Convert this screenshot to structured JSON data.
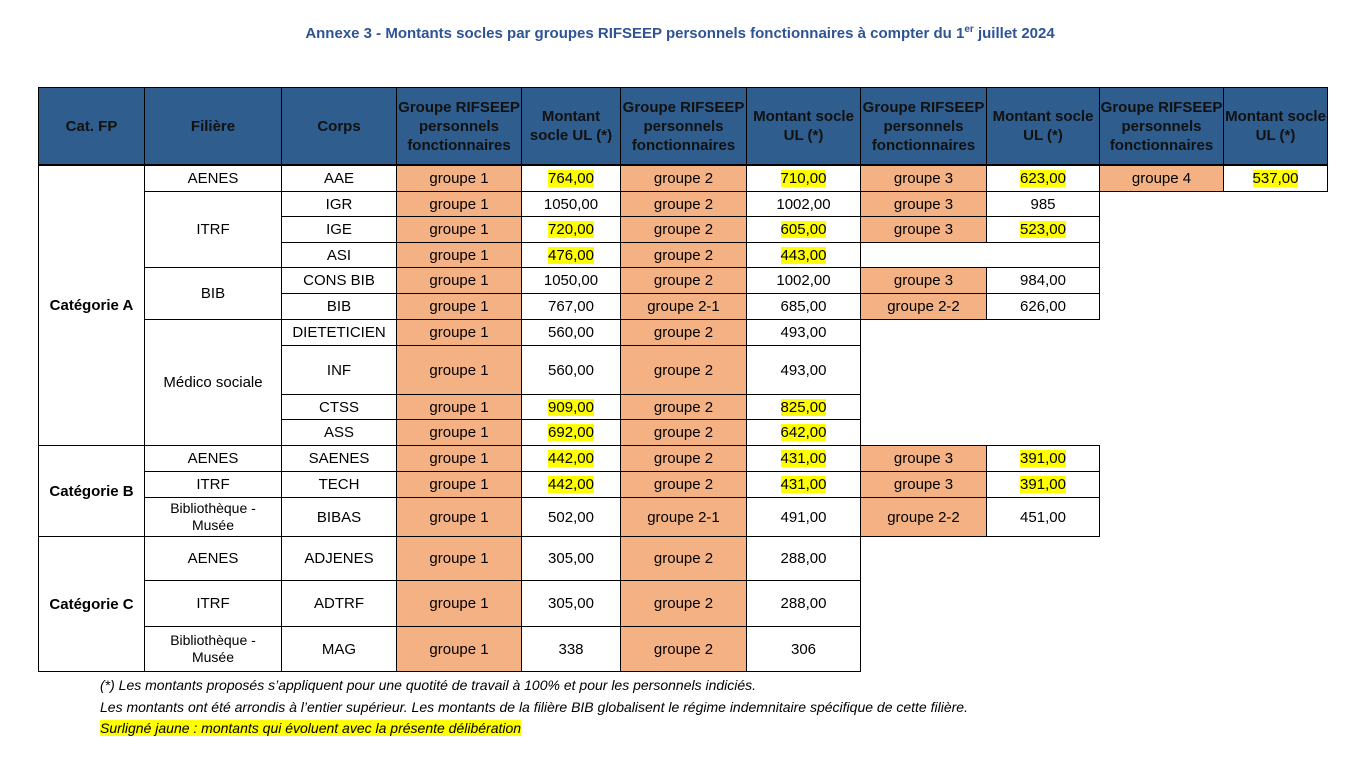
{
  "header": {
    "title_parts": [
      "Annexe 3 - Montants socles par groupes RIFSEEP personnels fonctionnaires à compter du 1",
      "er",
      " juillet 2024"
    ]
  },
  "table": {
    "columns": [
      "Cat. FP",
      "Filière",
      "Corps",
      "Groupe RIFSEEP personnels fonctionnaires",
      "Montant socle UL (*)",
      "Groupe RIFSEEP personnels fonctionnaires",
      "Montant socle UL (*)",
      "Groupe RIFSEEP personnels fonctionnaires",
      "Montant socle UL (*)",
      "Groupe RIFSEEP personnels fonctionnaires",
      "Montant socle UL (*)"
    ],
    "categories": [
      {
        "label": "Catégorie A",
        "filieres": [
          {
            "label": "AENES",
            "rows": [
              {
                "corps": "AAE",
                "groups": [
                  {
                    "group": "groupe 1",
                    "amount": "764,00",
                    "highlight": true
                  },
                  {
                    "group": "groupe 2",
                    "amount": "710,00",
                    "highlight": true
                  },
                  {
                    "group": "groupe 3",
                    "amount": "623,00",
                    "highlight": true
                  },
                  {
                    "group": "groupe 4",
                    "amount": "537,00",
                    "highlight": true
                  }
                ]
              }
            ]
          },
          {
            "label": "ITRF",
            "rows": [
              {
                "corps": "IGR",
                "groups": [
                  {
                    "group": "groupe 1",
                    "amount": "1050,00",
                    "highlight": false
                  },
                  {
                    "group": "groupe 2",
                    "amount": "1002,00",
                    "highlight": false
                  },
                  {
                    "group": "groupe 3",
                    "amount": "985",
                    "highlight": false
                  }
                ]
              },
              {
                "corps": "IGE",
                "groups": [
                  {
                    "group": "groupe 1",
                    "amount": "720,00",
                    "highlight": true
                  },
                  {
                    "group": "groupe 2",
                    "amount": "605,00",
                    "highlight": true
                  },
                  {
                    "group": "groupe 3",
                    "amount": "523,00",
                    "highlight": true
                  }
                ]
              },
              {
                "corps": "ASI",
                "groups": [
                  {
                    "group": "groupe 1",
                    "amount": "476,00",
                    "highlight": true
                  },
                  {
                    "group": "groupe 2",
                    "amount": "443,00",
                    "highlight": true
                  }
                ]
              }
            ]
          },
          {
            "label": "BIB",
            "rows": [
              {
                "corps": "CONS BIB",
                "groups": [
                  {
                    "group": "groupe 1",
                    "amount": "1050,00",
                    "highlight": false
                  },
                  {
                    "group": "groupe 2",
                    "amount": "1002,00",
                    "highlight": false
                  },
                  {
                    "group": "groupe 3",
                    "amount": "984,00",
                    "highlight": false
                  }
                ]
              },
              {
                "corps": "BIB",
                "groups": [
                  {
                    "group": "groupe 1",
                    "amount": "767,00",
                    "highlight": false
                  },
                  {
                    "group": "groupe 2-1",
                    "amount": "685,00",
                    "highlight": false
                  },
                  {
                    "group": "groupe 2-2",
                    "amount": "626,00",
                    "highlight": false
                  }
                ]
              }
            ]
          },
          {
            "label": "Médico sociale",
            "rows": [
              {
                "corps": "DIETETICIEN",
                "groups": [
                  {
                    "group": "groupe 1",
                    "amount": "560,00",
                    "highlight": false
                  },
                  {
                    "group": "groupe 2",
                    "amount": "493,00",
                    "highlight": false
                  }
                ]
              },
              {
                "corps": "INF",
                "groups": [
                  {
                    "group": "groupe 1",
                    "amount": "560,00",
                    "highlight": false
                  },
                  {
                    "group": "groupe 2",
                    "amount": "493,00",
                    "highlight": false
                  }
                ]
              },
              {
                "corps": "CTSS",
                "groups": [
                  {
                    "group": "groupe 1",
                    "amount": "909,00",
                    "highlight": true
                  },
                  {
                    "group": "groupe 2",
                    "amount": "825,00",
                    "highlight": true
                  }
                ]
              },
              {
                "corps": "ASS",
                "groups": [
                  {
                    "group": "groupe 1",
                    "amount": "692,00",
                    "highlight": true
                  },
                  {
                    "group": "groupe 2",
                    "amount": "642,00",
                    "highlight": true
                  }
                ]
              }
            ]
          }
        ]
      },
      {
        "label": "Catégorie B",
        "filieres": [
          {
            "label": "AENES",
            "rows": [
              {
                "corps": "SAENES",
                "groups": [
                  {
                    "group": "groupe 1",
                    "amount": "442,00",
                    "highlight": true
                  },
                  {
                    "group": "groupe 2",
                    "amount": "431,00",
                    "highlight": true
                  },
                  {
                    "group": "groupe 3",
                    "amount": "391,00",
                    "highlight": true
                  }
                ]
              }
            ]
          },
          {
            "label": "ITRF",
            "rows": [
              {
                "corps": "TECH",
                "groups": [
                  {
                    "group": "groupe 1",
                    "amount": "442,00",
                    "highlight": true
                  },
                  {
                    "group": "groupe 2",
                    "amount": "431,00",
                    "highlight": true
                  },
                  {
                    "group": "groupe 3",
                    "amount": "391,00",
                    "highlight": true
                  }
                ]
              }
            ]
          },
          {
            "label": "Bibliothèque - Musée",
            "rows": [
              {
                "corps": "BIBAS",
                "groups": [
                  {
                    "group": "groupe 1",
                    "amount": "502,00",
                    "highlight": false
                  },
                  {
                    "group": "groupe 2-1",
                    "amount": "491,00",
                    "highlight": false
                  },
                  {
                    "group": "groupe 2-2",
                    "amount": "451,00",
                    "highlight": false
                  }
                ]
              }
            ]
          }
        ]
      },
      {
        "label": "Catégorie C",
        "filieres": [
          {
            "label": "AENES",
            "rows": [
              {
                "corps": "ADJENES",
                "groups": [
                  {
                    "group": "groupe 1",
                    "amount": "305,00",
                    "highlight": false
                  },
                  {
                    "group": "groupe 2",
                    "amount": "288,00",
                    "highlight": false
                  }
                ]
              }
            ]
          },
          {
            "label": "ITRF",
            "rows": [
              {
                "corps": "ADTRF",
                "groups": [
                  {
                    "group": "groupe 1",
                    "amount": "305,00",
                    "highlight": false
                  },
                  {
                    "group": "groupe 2",
                    "amount": "288,00",
                    "highlight": false
                  }
                ]
              }
            ]
          },
          {
            "label": "Bibliothèque - Musée",
            "rows": [
              {
                "corps": "MAG",
                "groups": [
                  {
                    "group": "groupe 1",
                    "amount": "338",
                    "highlight": false
                  },
                  {
                    "group": "groupe 2",
                    "amount": "306",
                    "highlight": false
                  }
                ]
              }
            ]
          }
        ]
      }
    ]
  },
  "footnotes": [
    "(*) Les montants proposés s’appliquent pour une quotité de travail à 100% et pour les personnels indiciés.",
    "Les montants ont été arrondis à l’entier supérieur. Les montants de la filière BIB globalisent le régime indemnitaire spécifique de cette filière.",
    "Surligné jaune : montants qui évoluent avec la présente délibération"
  ]
}
